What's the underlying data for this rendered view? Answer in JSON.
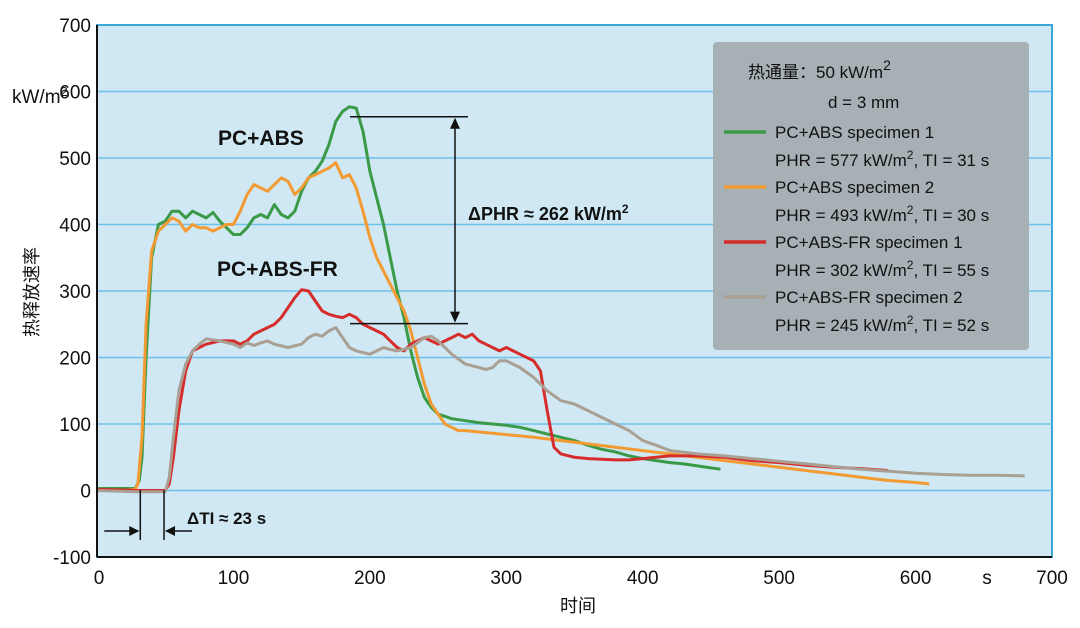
{
  "chart_data": {
    "type": "line",
    "xlabel": "时间",
    "x_unit": "s",
    "ylabel": "热释放速率",
    "y_unit": "kW/m²",
    "xlim": [
      0,
      700
    ],
    "ylim": [
      -100,
      700
    ],
    "x_ticks": [
      0,
      100,
      200,
      300,
      400,
      500,
      600,
      700
    ],
    "y_ticks": [
      -100,
      0,
      100,
      200,
      300,
      400,
      500,
      600,
      700
    ],
    "grid": "horizontal",
    "legend_position": "top-right",
    "legend_header": [
      "热通量：50 kW/m²",
      "d = 3 mm"
    ],
    "series": [
      {
        "name": "PC+ABS specimen 1",
        "subtitle": "PHR = 577 kW/m², TI = 31 s",
        "color": "#3a9a47",
        "points": [
          [
            0,
            3
          ],
          [
            20,
            3
          ],
          [
            28,
            3
          ],
          [
            31,
            15
          ],
          [
            33,
            50
          ],
          [
            36,
            200
          ],
          [
            40,
            350
          ],
          [
            45,
            400
          ],
          [
            50,
            405
          ],
          [
            55,
            420
          ],
          [
            60,
            420
          ],
          [
            65,
            410
          ],
          [
            70,
            420
          ],
          [
            75,
            415
          ],
          [
            80,
            410
          ],
          [
            85,
            418
          ],
          [
            90,
            405
          ],
          [
            95,
            395
          ],
          [
            100,
            385
          ],
          [
            105,
            385
          ],
          [
            110,
            395
          ],
          [
            115,
            410
          ],
          [
            120,
            415
          ],
          [
            125,
            410
          ],
          [
            130,
            430
          ],
          [
            135,
            415
          ],
          [
            140,
            410
          ],
          [
            145,
            420
          ],
          [
            150,
            450
          ],
          [
            155,
            470
          ],
          [
            160,
            480
          ],
          [
            165,
            495
          ],
          [
            170,
            520
          ],
          [
            175,
            555
          ],
          [
            180,
            570
          ],
          [
            185,
            577
          ],
          [
            190,
            575
          ],
          [
            195,
            540
          ],
          [
            200,
            480
          ],
          [
            205,
            440
          ],
          [
            210,
            400
          ],
          [
            215,
            350
          ],
          [
            220,
            300
          ],
          [
            225,
            260
          ],
          [
            230,
            210
          ],
          [
            235,
            170
          ],
          [
            240,
            140
          ],
          [
            245,
            125
          ],
          [
            250,
            115
          ],
          [
            260,
            108
          ],
          [
            270,
            105
          ],
          [
            280,
            102
          ],
          [
            290,
            100
          ],
          [
            300,
            98
          ],
          [
            310,
            95
          ],
          [
            320,
            90
          ],
          [
            330,
            85
          ],
          [
            340,
            80
          ],
          [
            350,
            75
          ],
          [
            360,
            68
          ],
          [
            370,
            62
          ],
          [
            380,
            58
          ],
          [
            390,
            52
          ],
          [
            400,
            48
          ],
          [
            410,
            45
          ],
          [
            420,
            42
          ],
          [
            430,
            40
          ],
          [
            440,
            37
          ],
          [
            450,
            34
          ],
          [
            457,
            32
          ]
        ]
      },
      {
        "name": "PC+ABS specimen 2",
        "subtitle": "PHR = 493 kW/m², TI = 30 s",
        "color": "#f39a33",
        "points": [
          [
            0,
            0
          ],
          [
            20,
            0
          ],
          [
            28,
            2
          ],
          [
            30,
            10
          ],
          [
            33,
            80
          ],
          [
            36,
            250
          ],
          [
            40,
            360
          ],
          [
            45,
            390
          ],
          [
            50,
            400
          ],
          [
            55,
            410
          ],
          [
            60,
            405
          ],
          [
            65,
            390
          ],
          [
            70,
            400
          ],
          [
            75,
            395
          ],
          [
            80,
            395
          ],
          [
            85,
            390
          ],
          [
            90,
            395
          ],
          [
            95,
            400
          ],
          [
            100,
            400
          ],
          [
            105,
            420
          ],
          [
            110,
            445
          ],
          [
            115,
            460
          ],
          [
            120,
            455
          ],
          [
            125,
            450
          ],
          [
            130,
            460
          ],
          [
            135,
            470
          ],
          [
            140,
            465
          ],
          [
            145,
            445
          ],
          [
            150,
            455
          ],
          [
            155,
            470
          ],
          [
            160,
            475
          ],
          [
            165,
            480
          ],
          [
            170,
            485
          ],
          [
            175,
            493
          ],
          [
            180,
            470
          ],
          [
            185,
            475
          ],
          [
            190,
            455
          ],
          [
            195,
            420
          ],
          [
            200,
            380
          ],
          [
            205,
            350
          ],
          [
            210,
            330
          ],
          [
            215,
            310
          ],
          [
            220,
            290
          ],
          [
            225,
            270
          ],
          [
            230,
            240
          ],
          [
            235,
            200
          ],
          [
            240,
            160
          ],
          [
            245,
            130
          ],
          [
            250,
            115
          ],
          [
            255,
            100
          ],
          [
            260,
            95
          ],
          [
            265,
            90
          ],
          [
            270,
            90
          ],
          [
            280,
            88
          ],
          [
            290,
            86
          ],
          [
            300,
            84
          ],
          [
            320,
            80
          ],
          [
            340,
            75
          ],
          [
            360,
            70
          ],
          [
            380,
            65
          ],
          [
            400,
            60
          ],
          [
            420,
            55
          ],
          [
            440,
            50
          ],
          [
            460,
            45
          ],
          [
            480,
            40
          ],
          [
            500,
            35
          ],
          [
            520,
            30
          ],
          [
            540,
            25
          ],
          [
            560,
            20
          ],
          [
            580,
            15
          ],
          [
            600,
            12
          ],
          [
            610,
            10
          ]
        ]
      },
      {
        "name": "PC+ABS-FR specimen 1",
        "subtitle": "PHR = 302 kW/m², TI = 55 s",
        "color": "#d62c2c",
        "points": [
          [
            0,
            2
          ],
          [
            30,
            0
          ],
          [
            50,
            0
          ],
          [
            53,
            10
          ],
          [
            56,
            50
          ],
          [
            60,
            120
          ],
          [
            65,
            180
          ],
          [
            70,
            210
          ],
          [
            75,
            215
          ],
          [
            80,
            220
          ],
          [
            90,
            225
          ],
          [
            100,
            225
          ],
          [
            105,
            220
          ],
          [
            110,
            225
          ],
          [
            115,
            235
          ],
          [
            120,
            240
          ],
          [
            125,
            245
          ],
          [
            130,
            250
          ],
          [
            135,
            260
          ],
          [
            140,
            275
          ],
          [
            145,
            290
          ],
          [
            150,
            302
          ],
          [
            155,
            300
          ],
          [
            160,
            285
          ],
          [
            165,
            270
          ],
          [
            170,
            265
          ],
          [
            175,
            262
          ],
          [
            180,
            260
          ],
          [
            185,
            265
          ],
          [
            190,
            260
          ],
          [
            195,
            250
          ],
          [
            200,
            245
          ],
          [
            205,
            240
          ],
          [
            210,
            235
          ],
          [
            215,
            225
          ],
          [
            220,
            215
          ],
          [
            225,
            210
          ],
          [
            230,
            220
          ],
          [
            235,
            225
          ],
          [
            240,
            230
          ],
          [
            245,
            225
          ],
          [
            250,
            220
          ],
          [
            255,
            225
          ],
          [
            260,
            230
          ],
          [
            265,
            235
          ],
          [
            270,
            230
          ],
          [
            275,
            235
          ],
          [
            280,
            225
          ],
          [
            285,
            220
          ],
          [
            290,
            215
          ],
          [
            295,
            210
          ],
          [
            300,
            215
          ],
          [
            305,
            210
          ],
          [
            310,
            205
          ],
          [
            315,
            200
          ],
          [
            320,
            195
          ],
          [
            325,
            180
          ],
          [
            330,
            120
          ],
          [
            335,
            65
          ],
          [
            340,
            55
          ],
          [
            350,
            50
          ],
          [
            360,
            48
          ],
          [
            370,
            47
          ],
          [
            380,
            46
          ],
          [
            390,
            46
          ],
          [
            400,
            48
          ],
          [
            420,
            52
          ],
          [
            440,
            52
          ],
          [
            460,
            50
          ],
          [
            480,
            45
          ],
          [
            500,
            42
          ],
          [
            520,
            38
          ],
          [
            540,
            35
          ],
          [
            560,
            33
          ],
          [
            580,
            30
          ]
        ]
      },
      {
        "name": "PC+ABS-FR specimen 2",
        "subtitle": "PHR = 245 kW/m², TI = 52 s",
        "color": "#a9a093",
        "points": [
          [
            0,
            0
          ],
          [
            30,
            -2
          ],
          [
            50,
            -2
          ],
          [
            53,
            20
          ],
          [
            56,
            80
          ],
          [
            60,
            150
          ],
          [
            65,
            190
          ],
          [
            70,
            210
          ],
          [
            75,
            220
          ],
          [
            80,
            228
          ],
          [
            90,
            225
          ],
          [
            100,
            220
          ],
          [
            105,
            215
          ],
          [
            110,
            222
          ],
          [
            115,
            218
          ],
          [
            120,
            222
          ],
          [
            125,
            225
          ],
          [
            130,
            220
          ],
          [
            140,
            215
          ],
          [
            150,
            220
          ],
          [
            155,
            230
          ],
          [
            160,
            235
          ],
          [
            165,
            232
          ],
          [
            170,
            240
          ],
          [
            175,
            245
          ],
          [
            180,
            230
          ],
          [
            185,
            215
          ],
          [
            190,
            210
          ],
          [
            200,
            205
          ],
          [
            205,
            210
          ],
          [
            210,
            215
          ],
          [
            215,
            212
          ],
          [
            220,
            210
          ],
          [
            230,
            215
          ],
          [
            240,
            230
          ],
          [
            245,
            232
          ],
          [
            250,
            225
          ],
          [
            255,
            215
          ],
          [
            260,
            205
          ],
          [
            270,
            190
          ],
          [
            280,
            185
          ],
          [
            285,
            182
          ],
          [
            290,
            185
          ],
          [
            295,
            195
          ],
          [
            300,
            195
          ],
          [
            305,
            190
          ],
          [
            310,
            185
          ],
          [
            320,
            170
          ],
          [
            330,
            150
          ],
          [
            340,
            135
          ],
          [
            350,
            130
          ],
          [
            360,
            120
          ],
          [
            370,
            110
          ],
          [
            380,
            100
          ],
          [
            390,
            90
          ],
          [
            400,
            75
          ],
          [
            410,
            68
          ],
          [
            420,
            60
          ],
          [
            440,
            55
          ],
          [
            460,
            52
          ],
          [
            480,
            48
          ],
          [
            500,
            44
          ],
          [
            520,
            40
          ],
          [
            540,
            36
          ],
          [
            560,
            32
          ],
          [
            580,
            29
          ],
          [
            600,
            26
          ],
          [
            620,
            24
          ],
          [
            640,
            23
          ],
          [
            660,
            23
          ],
          [
            680,
            22
          ]
        ]
      }
    ],
    "annotations": {
      "pc_abs_label": "PC+ABS",
      "pc_abs_fr_label": "PC+ABS-FR",
      "delta_phr": "ΔPHR ≈ 262 kW/m²",
      "delta_ti": "ΔTI ≈ 23 s",
      "phr_top_y": 577,
      "phr_bottom_y": 302,
      "ti_left_x": 31,
      "ti_right_x": 55
    },
    "colors": {
      "plot_background": "#cfe8f3",
      "plot_border": "#3aa7d9",
      "grid": "#6ec1ea",
      "legend_background": "#a6b0b5"
    }
  }
}
